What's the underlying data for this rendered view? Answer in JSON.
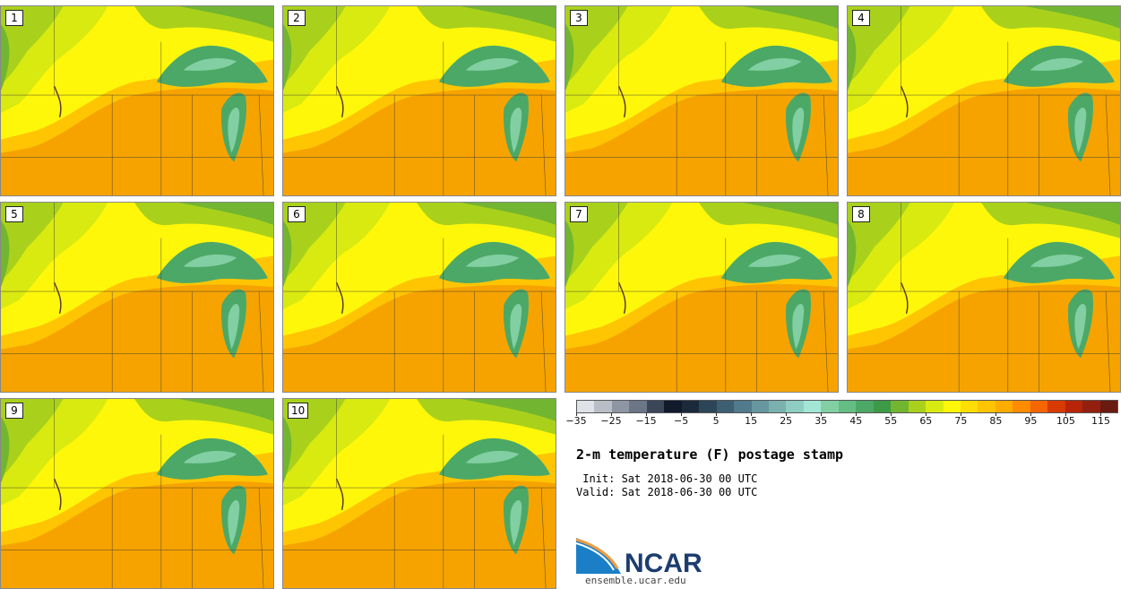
{
  "panels": [
    "1",
    "2",
    "3",
    "4",
    "5",
    "6",
    "7",
    "8",
    "9",
    "10"
  ],
  "colorbar": {
    "colors": [
      "#dfe3e8",
      "#b9bec6",
      "#8e96a3",
      "#6b7686",
      "#3b4658",
      "#111a2b",
      "#1b2a3b",
      "#2c4658",
      "#3e5f72",
      "#517a8c",
      "#66979f",
      "#7ab1ae",
      "#8fcdc3",
      "#a3e6d6",
      "#82cfa3",
      "#66bd84",
      "#4ca866",
      "#3d9a46",
      "#72b530",
      "#a9d11c",
      "#d9ea10",
      "#fff70a",
      "#ffde06",
      "#ffc503",
      "#ffac00",
      "#ff8c00",
      "#f56500",
      "#d83a00",
      "#b82408",
      "#93200e",
      "#6b1a10"
    ],
    "ticks": [
      "−35",
      "−25",
      "−15",
      "−5",
      "5",
      "15",
      "25",
      "35",
      "45",
      "55",
      "65",
      "75",
      "85",
      "95",
      "105",
      "115"
    ]
  },
  "title": "2-m temperature (F) postage stamp",
  "init": " Init: Sat 2018-06-30 00 UTC",
  "valid": "Valid: Sat 2018-06-30 00 UTC",
  "logo": {
    "name": "NCAR",
    "site": "ensemble.ucar.edu",
    "colors": {
      "blue": "#1a7fc7",
      "orange": "#f39c3c",
      "navy": "#1c3d6e"
    }
  },
  "map_colors": {
    "hot": "#f6a300",
    "warm": "#ffc503",
    "mild": "#fff70a",
    "cool": "#d9ea10",
    "green": "#a9d11c",
    "dgreen": "#72b530",
    "lake": "#4ca866",
    "lakelight": "#82cfa3",
    "border": "#333333"
  }
}
